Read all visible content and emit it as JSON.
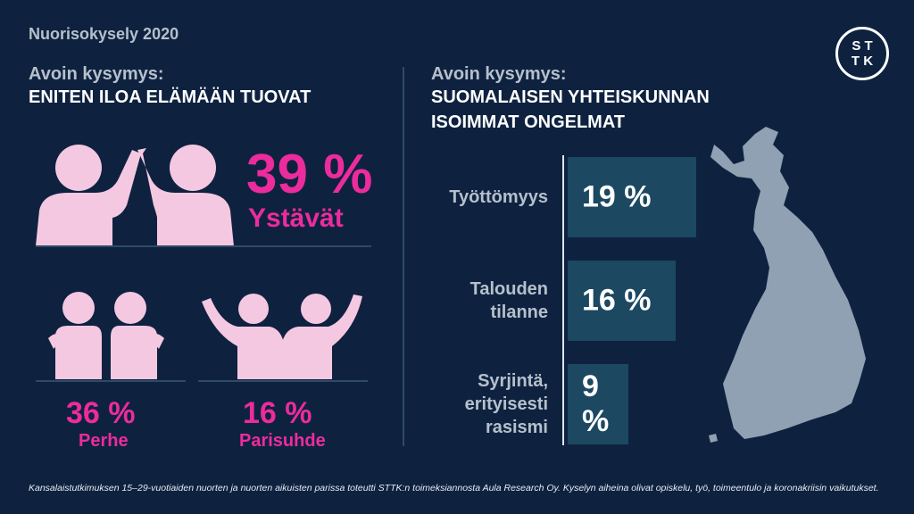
{
  "survey_title": "Nuorisokysely 2020",
  "logo": {
    "line1": "S T",
    "line2": "T K"
  },
  "left": {
    "question_label": "Avoin kysymys:",
    "title": "ENITEN ILOA ELÄMÄÄN TUOVAT",
    "items": [
      {
        "value": "39 %",
        "label": "Ystävät",
        "icon": "friends-high-five-icon"
      },
      {
        "value": "36 %",
        "label": "Perhe",
        "icon": "family-hug-icon"
      },
      {
        "value": "16 %",
        "label": "Parisuhde",
        "icon": "couple-cheering-icon"
      }
    ]
  },
  "right": {
    "question_label": "Avoin kysymys:",
    "title_line1": "SUOMALAISEN YHTEISKUNNAN",
    "title_line2": "ISOIMMAT ONGELMAT",
    "chart_data": {
      "type": "bar",
      "orientation": "horizontal",
      "categories": [
        "Työttömyys",
        "Talouden tilanne",
        "Syrjintä, erityisesti rasismi"
      ],
      "label_lines": [
        [
          "Työttömyys"
        ],
        [
          "Talouden",
          "tilanne"
        ],
        [
          "Syrjintä,",
          "erityisesti",
          "rasismi"
        ]
      ],
      "values": [
        19,
        16,
        9
      ],
      "value_labels": [
        "19 %",
        "16 %",
        "9 %"
      ],
      "unit": "%"
    },
    "map": "finland-map"
  },
  "footnote": "Kansalaistutkimuksen 15–29-vuotiaiden nuorten ja nuorten aikuisten parissa toteutti STTK:n toimeksiannosta Aula Research Oy. Kyselyn aiheina olivat opiskelu, työ, toimeentulo ja koronakriisin vaikutukset.",
  "colors": {
    "background": "#0e2240",
    "accent_pink": "#ec2c9c",
    "icon_pink": "#f5c8e2",
    "bar": "#1c4861",
    "map": "#8fa1b3"
  }
}
